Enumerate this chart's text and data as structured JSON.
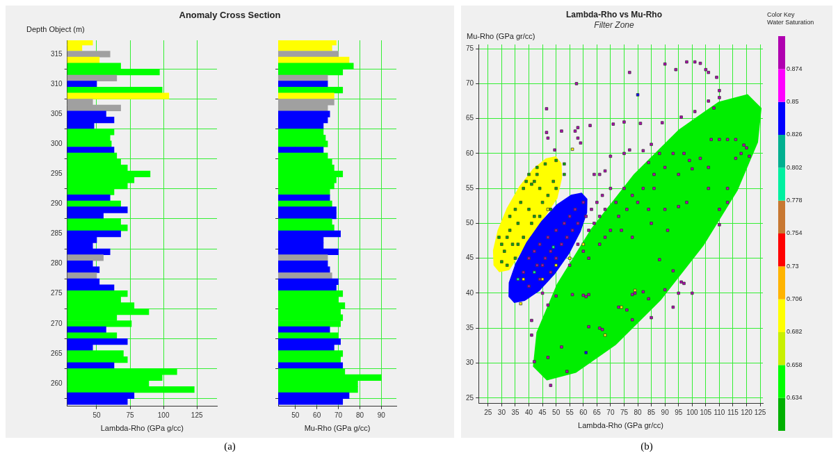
{
  "chart_data": [
    {
      "type": "bar",
      "title": "Anomaly Cross Section",
      "ylabel": "Depth Object (m)",
      "xlabel": "Lambda-Rho (GPa g/cc)",
      "annotations": [
        "(a)"
      ],
      "orientation": "horizontal",
      "grid": true,
      "xlim": [
        28,
        140
      ],
      "xticks": [
        50,
        75,
        100,
        125
      ],
      "ylim": [
        256.2,
        317.3
      ],
      "yticks": [
        260,
        265,
        270,
        275,
        280,
        285,
        290,
        295,
        300,
        305,
        310,
        315
      ],
      "x": [
        317,
        316,
        315,
        314,
        313,
        312,
        311,
        310,
        309,
        308,
        307,
        306,
        305,
        304,
        303,
        302,
        301,
        300,
        299,
        298,
        297,
        296,
        295,
        294,
        293,
        292,
        291,
        290,
        289,
        288,
        287,
        286,
        285,
        284,
        283,
        282,
        281,
        280,
        279,
        278,
        277,
        276,
        275,
        274,
        273,
        272,
        271,
        270,
        269,
        268,
        267,
        266,
        265,
        264,
        263,
        262,
        261,
        260,
        259,
        258,
        257
      ],
      "series": [
        {
          "values": [
            47,
            39,
            60,
            52,
            68,
            97,
            65,
            50,
            99,
            104,
            47,
            68,
            57,
            63,
            48,
            63,
            60,
            61,
            63,
            65,
            68,
            73,
            90,
            78,
            73,
            63,
            60,
            68,
            73,
            55,
            68,
            73,
            68,
            50,
            47,
            60,
            55,
            47,
            52,
            50,
            52,
            63,
            73,
            68,
            78,
            89,
            65,
            76,
            57,
            65,
            73,
            47,
            70,
            73,
            63,
            110,
            99,
            89,
            123,
            78,
            73
          ],
          "colors": [
            "#ffff00",
            "#ffff00",
            "#a0a0a0",
            "#ffff00",
            "#00ff00",
            "#00ff00",
            "#a0a0a0",
            "#0000ff",
            "#00ff00",
            "#ffff00",
            "#a0a0a0",
            "#a0a0a0",
            "#0000ff",
            "#0000ff",
            "#0000ff",
            "#00ff00",
            "#00ff00",
            "#00ff00",
            "#0000ff",
            "#00ff00",
            "#00ff00",
            "#00ff00",
            "#00ff00",
            "#00ff00",
            "#00ff00",
            "#00ff00",
            "#0000ff",
            "#00ff00",
            "#0000ff",
            "#0000ff",
            "#00ff00",
            "#00ff00",
            "#0000ff",
            "#0000ff",
            "#0000ff",
            "#0000ff",
            "#a0a0a0",
            "#0000ff",
            "#0000ff",
            "#a0a0a0",
            "#0000ff",
            "#0000ff",
            "#00ff00",
            "#00ff00",
            "#00ff00",
            "#00ff00",
            "#00ff00",
            "#00ff00",
            "#0000ff",
            "#00ff00",
            "#0000ff",
            "#0000ff",
            "#00ff00",
            "#00ff00",
            "#0000ff",
            "#00ff00",
            "#00ff00",
            "#00ff00",
            "#00ff00",
            "#0000ff",
            "#0000ff"
          ]
        }
      ]
    },
    {
      "type": "bar",
      "xlabel": "Mu-Rho (GPa g/cc)",
      "orientation": "horizontal",
      "grid": true,
      "tick_labels": "x",
      "xlim": [
        42,
        97
      ],
      "xticks": [
        50,
        60,
        70,
        80,
        90
      ],
      "ylim": [
        256.2,
        317.3
      ],
      "yticks": [
        260,
        265,
        270,
        275,
        280,
        285,
        290,
        295,
        300,
        305,
        310,
        315
      ],
      "x": [
        317,
        316,
        315,
        314,
        313,
        312,
        311,
        310,
        309,
        308,
        307,
        306,
        305,
        304,
        303,
        302,
        301,
        300,
        299,
        298,
        297,
        296,
        295,
        294,
        293,
        292,
        291,
        290,
        289,
        288,
        287,
        286,
        285,
        284,
        283,
        282,
        281,
        280,
        279,
        278,
        277,
        276,
        275,
        274,
        273,
        272,
        271,
        270,
        269,
        268,
        267,
        266,
        265,
        264,
        263,
        262,
        261,
        260,
        259,
        258,
        257
      ],
      "series": [
        {
          "values": [
            69,
            67,
            70,
            75,
            77,
            72,
            65,
            65,
            72,
            68,
            68,
            65,
            66,
            65,
            63,
            63,
            64,
            65,
            63,
            65,
            67,
            68,
            72,
            69,
            68,
            66,
            66,
            67,
            69,
            69,
            67,
            68,
            71,
            63,
            63,
            70,
            65,
            65,
            66,
            67,
            70,
            69,
            72,
            70,
            73,
            71,
            72,
            71,
            66,
            70,
            71,
            68,
            72,
            71,
            72,
            73,
            90,
            79,
            79,
            75,
            72
          ],
          "colors": [
            "#ffff00",
            "#ffff00",
            "#a0a0a0",
            "#ffff00",
            "#00ff00",
            "#00ff00",
            "#a0a0a0",
            "#0000ff",
            "#00ff00",
            "#ffff00",
            "#a0a0a0",
            "#a0a0a0",
            "#0000ff",
            "#0000ff",
            "#0000ff",
            "#00ff00",
            "#00ff00",
            "#00ff00",
            "#0000ff",
            "#00ff00",
            "#00ff00",
            "#00ff00",
            "#00ff00",
            "#00ff00",
            "#00ff00",
            "#00ff00",
            "#0000ff",
            "#00ff00",
            "#0000ff",
            "#0000ff",
            "#00ff00",
            "#00ff00",
            "#0000ff",
            "#0000ff",
            "#0000ff",
            "#0000ff",
            "#a0a0a0",
            "#0000ff",
            "#0000ff",
            "#a0a0a0",
            "#0000ff",
            "#0000ff",
            "#00ff00",
            "#00ff00",
            "#00ff00",
            "#00ff00",
            "#00ff00",
            "#00ff00",
            "#0000ff",
            "#00ff00",
            "#0000ff",
            "#0000ff",
            "#00ff00",
            "#00ff00",
            "#0000ff",
            "#00ff00",
            "#00ff00",
            "#00ff00",
            "#00ff00",
            "#0000ff",
            "#0000ff"
          ]
        }
      ]
    },
    {
      "type": "scatter",
      "title": "Lambda-Rho vs Mu-Rho",
      "subtitle": "Filter Zone",
      "xlabel": "Lambda-Rho (GPa gr/cc)",
      "ylabel": "Mu-Rho (GPa gr/cc)",
      "annotations": [
        "(b)"
      ],
      "grid": true,
      "xlim": [
        21.5,
        126
      ],
      "xticks": [
        25,
        30,
        35,
        40,
        45,
        50,
        55,
        60,
        65,
        70,
        75,
        80,
        85,
        90,
        95,
        100,
        105,
        110,
        115,
        120,
        125
      ],
      "ylim": [
        24.2,
        75.6
      ],
      "yticks": [
        25,
        30,
        35,
        40,
        45,
        50,
        55,
        60,
        65,
        70,
        75
      ],
      "clabel": "Color Key\nWater Saturation",
      "clim": [
        0.61,
        0.898
      ],
      "cticks": [
        0.634,
        0.658,
        0.682,
        0.706,
        0.73,
        0.754,
        0.778,
        0.802,
        0.826,
        0.85,
        0.874
      ],
      "colors": [
        "#00b000",
        "#00ff00",
        "#c8f000",
        "#ffff00",
        "#ffb400",
        "#ff0000",
        "#c87832",
        "#00f0a0",
        "#00b090",
        "#0000ff",
        "#ff00ff",
        "#b000b0"
      ],
      "series": [
        {
          "type": "area",
          "color": "#0000ff",
          "x": [
            61.5,
            59.4,
            55.5,
            50.2,
            44.5,
            39.1,
            35.0,
            32.6,
            32.5,
            34.6,
            38.5,
            43.8,
            49.5,
            54.9,
            59.0,
            61.4
          ],
          "values": [
            53.5,
            54.4,
            54.1,
            52.7,
            50.3,
            47.3,
            44.2,
            41.5,
            39.5,
            38.6,
            38.9,
            40.3,
            42.7,
            45.7,
            48.8,
            51.5
          ]
        },
        {
          "type": "area",
          "color": "#ffff00",
          "x": [
            52,
            49.9,
            46.2,
            41.5,
            36.5,
            31.9,
            28.5,
            26.8,
            27,
            29.1,
            32.8,
            null,
            null,
            null,
            50.5,
            52.2
          ],
          "values": [
            58.6,
            59.6,
            59.3,
            57.8,
            55.3,
            52.2,
            49.0,
            46.1,
            44,
            43.0,
            43.3,
            null,
            null,
            null,
            53.6,
            56.5
          ]
        },
        {
          "type": "area",
          "color": "#00ee00",
          "x": [
            125.5,
            120.4,
            109.7,
            95.0,
            78.5,
            62.8,
            50.3,
            42.8,
            41.5,
            46.6,
            57.3,
            72.0,
            88.5,
            104.2,
            116.7,
            124.2
          ],
          "values": [
            66.5,
            68.5,
            67.4,
            63.4,
            57,
            49.2,
            41.3,
            34.4,
            29.5,
            27.5,
            28.6,
            32.6,
            39,
            46.8,
            54.7,
            61.6
          ]
        },
        {
          "marker": "square",
          "x": [
            90,
            98,
            101,
            103,
            94,
            105,
            106,
            109,
            110,
            106,
            108,
            110,
            101,
            96,
            89,
            77,
            57.5,
            46.5,
            46.5,
            47,
            49.5,
            52,
            57,
            58,
            58,
            59,
            62.5,
            71,
            75,
            81,
            85,
            82,
            77,
            75,
            70
          ],
          "values": [
            72.8,
            73.1,
            73.1,
            72.9,
            72,
            72,
            71.6,
            70.9,
            69,
            67.5,
            66.5,
            68,
            66,
            65.2,
            64.4,
            71.6,
            70,
            66.4,
            63,
            62.2,
            60.5,
            63.2,
            63.2,
            63.7,
            62.2,
            61.5,
            64,
            64.2,
            64.5,
            64.3,
            61.3,
            60.4,
            60.5,
            60,
            59.6
          ],
          "cvalues": [
            0.885,
            0.885,
            0.885,
            0.885,
            0.885,
            0.885,
            0.885,
            0.885,
            0.885,
            0.885,
            0.885,
            0.885,
            0.885,
            0.885,
            0.885,
            0.885,
            0.885,
            0.885,
            0.885,
            0.885,
            0.885,
            0.885,
            0.885,
            0.885,
            0.885,
            0.885,
            0.885,
            0.885,
            0.885,
            0.885,
            0.885,
            0.885,
            0.885,
            0.885,
            0.885
          ]
        },
        {
          "marker": "square",
          "x": [
            107,
            110,
            113,
            116,
            119,
            120,
            121,
            118,
            116,
            106,
            103,
            99,
            97,
            93,
            90,
            86,
            88,
            84,
            95,
            100,
            106,
            113,
            110,
            113,
            110,
            98,
            90,
            95,
            91,
            97,
            100,
            95,
            93,
            90,
            88,
            93,
            96,
            79,
            82,
            84,
            78,
            73,
            76,
            78,
            85,
            66,
            67,
            62,
            61,
            56,
            50,
            45,
            47,
            41,
            41,
            42,
            47,
            52,
            54,
            48,
            60,
            62
          ],
          "values": [
            62,
            62,
            62,
            62,
            61.2,
            60.8,
            59.6,
            60,
            59.3,
            58,
            59.3,
            59,
            60,
            60,
            58,
            57,
            60,
            58.7,
            57,
            57.8,
            55,
            55,
            52,
            53,
            49.8,
            53,
            52,
            52.4,
            49,
            41.4,
            40,
            40,
            38,
            40.5,
            44.8,
            43.2,
            41.6,
            40,
            40.2,
            39.2,
            39.8,
            38,
            37.6,
            36.2,
            36.5,
            35,
            34.8,
            35.2,
            39.5,
            39.8,
            39.6,
            40,
            38.3,
            36.1,
            34,
            30.2,
            30.8,
            32.3,
            28.8,
            26.8,
            39.7,
            39.8
          ],
          "cvalues": [
            0.885,
            0.885,
            0.885,
            0.885,
            0.885,
            0.885,
            0.885,
            0.885,
            0.885,
            0.885,
            0.885,
            0.885,
            0.885,
            0.885,
            0.885,
            0.885,
            0.885,
            0.885,
            0.885,
            0.885,
            0.885,
            0.885,
            0.885,
            0.885,
            0.885,
            0.885,
            0.885,
            0.885,
            0.885,
            0.885,
            0.885,
            0.885,
            0.885,
            0.885,
            0.885,
            0.885,
            0.885,
            0.885,
            0.885,
            0.885,
            0.885,
            0.885,
            0.885,
            0.885,
            0.885,
            0.885,
            0.885,
            0.885,
            0.885,
            0.885,
            0.885,
            0.885,
            0.885,
            0.885,
            0.885,
            0.885,
            0.885,
            0.885,
            0.885,
            0.885,
            0.885,
            0.885
          ]
        },
        {
          "marker": "square",
          "x": [
            40,
            42,
            44,
            45,
            47,
            48,
            50,
            50,
            52,
            53,
            54,
            55,
            56,
            57,
            58,
            60,
            61,
            62,
            63,
            64,
            65,
            66,
            67,
            68,
            70,
            72,
            73,
            75,
            76,
            78,
            80,
            82,
            84,
            85,
            86,
            70,
            66,
            60,
            55,
            48,
            44,
            38,
            40,
            43,
            46,
            58,
            62,
            68,
            74,
            78,
            64,
            66,
            68
          ],
          "values": [
            45,
            46,
            47,
            44,
            48,
            46,
            49,
            45,
            47,
            50,
            48,
            51,
            49,
            52,
            50,
            53,
            51,
            49,
            52,
            50,
            53,
            51,
            54,
            52,
            55,
            53,
            51,
            55,
            52,
            54,
            53,
            55,
            52,
            50,
            55,
            49,
            47,
            46,
            44,
            43,
            42,
            43,
            41,
            44,
            45,
            47,
            45,
            48,
            49,
            48,
            57,
            57,
            57.5
          ],
          "cvalues": [
            0.885,
            0.885,
            0.885,
            0.885,
            0.885,
            0.885,
            0.885,
            0.885,
            0.885,
            0.885,
            0.885,
            0.885,
            0.885,
            0.885,
            0.885,
            0.885,
            0.885,
            0.885,
            0.885,
            0.885,
            0.885,
            0.885,
            0.885,
            0.885,
            0.885,
            0.885,
            0.885,
            0.885,
            0.885,
            0.885,
            0.885,
            0.885,
            0.885,
            0.885,
            0.885,
            0.885,
            0.885,
            0.885,
            0.885,
            0.885,
            0.885,
            0.885,
            0.885,
            0.885,
            0.885,
            0.885,
            0.885,
            0.885,
            0.885,
            0.885,
            0.885,
            0.885,
            0.885
          ]
        },
        {
          "marker": "square",
          "x": [
            80,
            61
          ],
          "values": [
            68.4,
            31.5
          ],
          "cvalues": [
            0.84,
            0.84
          ]
        },
        {
          "marker": "square",
          "x": [
            29,
            30,
            31,
            32,
            33,
            34,
            33,
            35,
            36,
            37,
            38,
            39,
            40,
            41,
            42,
            43,
            44,
            40,
            42,
            45,
            47,
            48,
            36,
            38,
            30,
            32,
            35,
            41,
            44,
            46,
            43,
            49,
            50,
            53,
            53,
            50
          ],
          "values": [
            48,
            47,
            46,
            48,
            49,
            47,
            51,
            52,
            50,
            53,
            55,
            56,
            57,
            55.6,
            56,
            57,
            55,
            52,
            51,
            53,
            54,
            52,
            47,
            48,
            44.5,
            44,
            45,
            50,
            51,
            58.5,
            58,
            56,
            55,
            58.5,
            57,
            59
          ],
          "cvalues": [
            0.62,
            0.62,
            0.62,
            0.62,
            0.62,
            0.62,
            0.62,
            0.62,
            0.62,
            0.62,
            0.62,
            0.62,
            0.62,
            0.62,
            0.62,
            0.62,
            0.62,
            0.62,
            0.62,
            0.62,
            0.62,
            0.62,
            0.62,
            0.62,
            0.62,
            0.62,
            0.62,
            0.62,
            0.62,
            0.62,
            0.62,
            0.62,
            0.62,
            0.62,
            0.62,
            0.62
          ]
        },
        {
          "marker": "square",
          "x": [
            37,
            45,
            50,
            55,
            60,
            47,
            38,
            68,
            74,
            79,
            56
          ],
          "values": [
            38.5,
            42,
            44,
            45,
            47,
            52,
            42,
            34,
            38,
            40.4,
            60.6
          ],
          "cvalues": [
            0.69,
            0.69,
            0.69,
            0.69,
            0.69,
            0.69,
            0.69,
            0.69,
            0.69,
            0.69,
            0.69
          ]
        },
        {
          "marker": "square",
          "x": [
            36,
            42,
            49
          ],
          "values": [
            42,
            43,
            46.6
          ],
          "cvalues": [
            0.79,
            0.79,
            0.79
          ]
        }
      ]
    }
  ]
}
